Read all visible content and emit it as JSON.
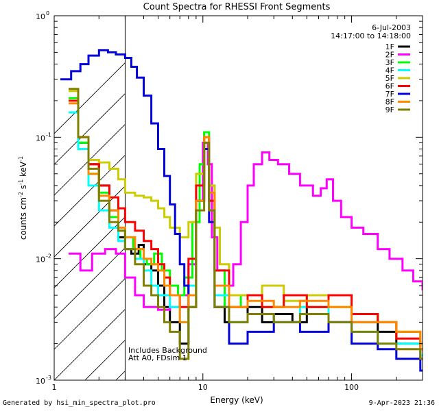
{
  "chart_data": {
    "type": "line",
    "title": "Count Spectra for RHESSI Front Segments",
    "xlabel": "Energy (keV)",
    "ylabel_parts": [
      "counts cm",
      "-2",
      " s",
      "-1",
      " keV",
      "-1"
    ],
    "xscale": "log",
    "yscale": "log",
    "xlim": [
      1,
      300
    ],
    "ylim": [
      0.001,
      1
    ],
    "x_ticks": [
      {
        "value": 1,
        "label": "1"
      },
      {
        "value": 10,
        "label": "10"
      },
      {
        "value": 100,
        "label": "100"
      }
    ],
    "y_ticks": [
      {
        "value": 0.001,
        "base": "10",
        "exp": "-3"
      },
      {
        "value": 0.01,
        "base": "10",
        "exp": "-2"
      },
      {
        "value": 0.1,
        "base": "10",
        "exp": "-1"
      },
      {
        "value": 1,
        "base": "10",
        "exp": "0"
      }
    ],
    "date": "6-Jul-2003",
    "time_range": "14:17:00 to 14:18:00",
    "annotation_lines": [
      "Includes Background",
      "Att A0, FDsim 1"
    ],
    "hatched_region_xmax": 3,
    "legend_position": "top-right",
    "series": [
      {
        "name": "1F",
        "color": "#000000",
        "points": [
          [
            1.25,
            0.2
          ],
          [
            1.45,
            0.09
          ],
          [
            1.7,
            0.06
          ],
          [
            2.0,
            0.04
          ],
          [
            2.35,
            0.025
          ],
          [
            2.7,
            0.015
          ],
          [
            3.0,
            0.012
          ],
          [
            3.3,
            0.011
          ],
          [
            3.7,
            0.013
          ],
          [
            4.0,
            0.009
          ],
          [
            4.5,
            0.008
          ],
          [
            5.0,
            0.006
          ],
          [
            5.5,
            0.004
          ],
          [
            6.0,
            0.003
          ],
          [
            7.0,
            0.002
          ],
          [
            8.0,
            0.004
          ],
          [
            9.0,
            0.03
          ],
          [
            10.2,
            0.1
          ],
          [
            11.0,
            0.03
          ],
          [
            12.0,
            0.004
          ],
          [
            14.0,
            0.003
          ],
          [
            17,
            0.003
          ],
          [
            20,
            0.004
          ],
          [
            25,
            0.003
          ],
          [
            30,
            0.0035
          ],
          [
            40,
            0.003
          ],
          [
            50,
            0.004
          ],
          [
            70,
            0.003
          ],
          [
            100,
            0.003
          ],
          [
            150,
            0.0025
          ],
          [
            200,
            0.002
          ],
          [
            290,
            0.0015
          ]
        ]
      },
      {
        "name": "2F",
        "color": "#ff00ff",
        "points": [
          [
            1.25,
            0.011
          ],
          [
            1.5,
            0.008
          ],
          [
            1.8,
            0.011
          ],
          [
            2.2,
            0.012
          ],
          [
            2.6,
            0.011
          ],
          [
            3.0,
            0.007
          ],
          [
            3.5,
            0.005
          ],
          [
            4.0,
            0.004
          ],
          [
            5.0,
            0.0038
          ],
          [
            6.0,
            0.004
          ],
          [
            7.0,
            0.005
          ],
          [
            8.0,
            0.009
          ],
          [
            9.0,
            0.03
          ],
          [
            10.0,
            0.09
          ],
          [
            10.8,
            0.06
          ],
          [
            11.5,
            0.015
          ],
          [
            12.5,
            0.008
          ],
          [
            14.0,
            0.006
          ],
          [
            16.0,
            0.009
          ],
          [
            18.0,
            0.02
          ],
          [
            20.0,
            0.04
          ],
          [
            22.0,
            0.06
          ],
          [
            25.0,
            0.075
          ],
          [
            28.0,
            0.065
          ],
          [
            32.0,
            0.06
          ],
          [
            38.0,
            0.05
          ],
          [
            45.0,
            0.04
          ],
          [
            55.0,
            0.033
          ],
          [
            62.0,
            0.038
          ],
          [
            68.0,
            0.045
          ],
          [
            75.0,
            0.03
          ],
          [
            85.0,
            0.022
          ],
          [
            100.0,
            0.018
          ],
          [
            120.0,
            0.016
          ],
          [
            150.0,
            0.012
          ],
          [
            180.0,
            0.01
          ],
          [
            220.0,
            0.008
          ],
          [
            260.0,
            0.0065
          ],
          [
            300.0,
            0.0055
          ]
        ]
      },
      {
        "name": "3F",
        "color": "#00ff00",
        "points": [
          [
            1.25,
            0.21
          ],
          [
            1.45,
            0.09
          ],
          [
            1.7,
            0.05
          ],
          [
            2.0,
            0.035
          ],
          [
            2.35,
            0.022
          ],
          [
            2.7,
            0.017
          ],
          [
            3.0,
            0.015
          ],
          [
            3.4,
            0.012
          ],
          [
            3.8,
            0.01
          ],
          [
            4.2,
            0.009
          ],
          [
            4.7,
            0.011
          ],
          [
            5.3,
            0.008
          ],
          [
            6.0,
            0.006
          ],
          [
            6.8,
            0.005
          ],
          [
            7.5,
            0.007
          ],
          [
            8.5,
            0.02
          ],
          [
            9.5,
            0.06
          ],
          [
            10.2,
            0.11
          ],
          [
            11.0,
            0.04
          ],
          [
            12.0,
            0.008
          ],
          [
            14,
            0.004
          ],
          [
            18,
            0.005
          ],
          [
            25,
            0.004
          ],
          [
            35,
            0.005
          ],
          [
            50,
            0.004
          ],
          [
            70,
            0.005
          ],
          [
            100,
            0.0035
          ],
          [
            150,
            0.003
          ],
          [
            200,
            0.0025
          ],
          [
            290,
            0.002
          ]
        ]
      },
      {
        "name": "4F",
        "color": "#00ffff",
        "points": [
          [
            1.25,
            0.16
          ],
          [
            1.45,
            0.08
          ],
          [
            1.7,
            0.04
          ],
          [
            2.0,
            0.025
          ],
          [
            2.35,
            0.018
          ],
          [
            2.7,
            0.014
          ],
          [
            3.0,
            0.012
          ],
          [
            3.5,
            0.01
          ],
          [
            4.0,
            0.008
          ],
          [
            4.5,
            0.006
          ],
          [
            5.0,
            0.005
          ],
          [
            6.0,
            0.004
          ],
          [
            7.0,
            0.003
          ],
          [
            8.0,
            0.006
          ],
          [
            9.0,
            0.03
          ],
          [
            10.2,
            0.1
          ],
          [
            11.0,
            0.03
          ],
          [
            12.0,
            0.005
          ],
          [
            15,
            0.003
          ],
          [
            20,
            0.0035
          ],
          [
            30,
            0.003
          ],
          [
            45,
            0.004
          ],
          [
            70,
            0.003
          ],
          [
            100,
            0.0025
          ],
          [
            150,
            0.002
          ],
          [
            200,
            0.002
          ],
          [
            290,
            0.0016
          ]
        ]
      },
      {
        "name": "5F",
        "color": "#cccc00",
        "points": [
          [
            1.25,
            0.24
          ],
          [
            1.45,
            0.1
          ],
          [
            1.7,
            0.065
          ],
          [
            2.0,
            0.062
          ],
          [
            2.35,
            0.055
          ],
          [
            2.7,
            0.045
          ],
          [
            3.0,
            0.035
          ],
          [
            3.5,
            0.033
          ],
          [
            4.0,
            0.032
          ],
          [
            4.5,
            0.03
          ],
          [
            5.0,
            0.026
          ],
          [
            5.5,
            0.022
          ],
          [
            6.0,
            0.018
          ],
          [
            7.0,
            0.015
          ],
          [
            8.0,
            0.02
          ],
          [
            9.0,
            0.05
          ],
          [
            10.2,
            0.1
          ],
          [
            11.0,
            0.04
          ],
          [
            12.0,
            0.018
          ],
          [
            13.0,
            0.009
          ],
          [
            15,
            0.005
          ],
          [
            20,
            0.005
          ],
          [
            25,
            0.006
          ],
          [
            35,
            0.0045
          ],
          [
            50,
            0.005
          ],
          [
            70,
            0.004
          ],
          [
            100,
            0.0035
          ],
          [
            150,
            0.003
          ],
          [
            200,
            0.0025
          ],
          [
            290,
            0.002
          ]
        ]
      },
      {
        "name": "6F",
        "color": "#ff0000",
        "points": [
          [
            1.25,
            0.2
          ],
          [
            1.45,
            0.1
          ],
          [
            1.7,
            0.06
          ],
          [
            2.0,
            0.04
          ],
          [
            2.35,
            0.032
          ],
          [
            2.7,
            0.026
          ],
          [
            3.0,
            0.02
          ],
          [
            3.5,
            0.017
          ],
          [
            4.0,
            0.014
          ],
          [
            4.5,
            0.012
          ],
          [
            5.0,
            0.009
          ],
          [
            5.5,
            0.007
          ],
          [
            6.0,
            0.005
          ],
          [
            7.0,
            0.004
          ],
          [
            8.0,
            0.01
          ],
          [
            9.0,
            0.04
          ],
          [
            10.2,
            0.1
          ],
          [
            11.0,
            0.03
          ],
          [
            12.0,
            0.008
          ],
          [
            15,
            0.004
          ],
          [
            20,
            0.005
          ],
          [
            25,
            0.004
          ],
          [
            35,
            0.005
          ],
          [
            50,
            0.004
          ],
          [
            70,
            0.005
          ],
          [
            100,
            0.0035
          ],
          [
            150,
            0.003
          ],
          [
            200,
            0.0022
          ],
          [
            290,
            0.0018
          ]
        ]
      },
      {
        "name": "7F",
        "color": "#0000dd",
        "points": [
          [
            1.1,
            0.3
          ],
          [
            1.3,
            0.35
          ],
          [
            1.5,
            0.4
          ],
          [
            1.7,
            0.47
          ],
          [
            2.0,
            0.52
          ],
          [
            2.3,
            0.5
          ],
          [
            2.6,
            0.48
          ],
          [
            3.0,
            0.45
          ],
          [
            3.3,
            0.38
          ],
          [
            3.6,
            0.31
          ],
          [
            4.0,
            0.22
          ],
          [
            4.5,
            0.13
          ],
          [
            5.0,
            0.08
          ],
          [
            5.5,
            0.048
          ],
          [
            6.0,
            0.028
          ],
          [
            6.5,
            0.016
          ],
          [
            7.0,
            0.009
          ],
          [
            7.5,
            0.006
          ],
          [
            8.0,
            0.005
          ],
          [
            9.0,
            0.03
          ],
          [
            10.2,
            0.08
          ],
          [
            11.0,
            0.02
          ],
          [
            12.0,
            0.004
          ],
          [
            15,
            0.002
          ],
          [
            20,
            0.0025
          ],
          [
            30,
            0.003
          ],
          [
            45,
            0.0025
          ],
          [
            70,
            0.003
          ],
          [
            100,
            0.002
          ],
          [
            150,
            0.0018
          ],
          [
            200,
            0.0015
          ],
          [
            290,
            0.0012
          ]
        ]
      },
      {
        "name": "8F",
        "color": "#ff8800",
        "points": [
          [
            1.25,
            0.19
          ],
          [
            1.45,
            0.1
          ],
          [
            1.7,
            0.05
          ],
          [
            2.0,
            0.033
          ],
          [
            2.35,
            0.025
          ],
          [
            2.7,
            0.018
          ],
          [
            3.0,
            0.015
          ],
          [
            3.5,
            0.012
          ],
          [
            4.0,
            0.01
          ],
          [
            4.5,
            0.009
          ],
          [
            5.0,
            0.008
          ],
          [
            5.5,
            0.006
          ],
          [
            6.0,
            0.005
          ],
          [
            7.0,
            0.003
          ],
          [
            8.0,
            0.005
          ],
          [
            9.0,
            0.03
          ],
          [
            10.2,
            0.1
          ],
          [
            11.0,
            0.035
          ],
          [
            12.0,
            0.006
          ],
          [
            15,
            0.004
          ],
          [
            20,
            0.0045
          ],
          [
            30,
            0.004
          ],
          [
            45,
            0.0045
          ],
          [
            70,
            0.004
          ],
          [
            100,
            0.003
          ],
          [
            150,
            0.003
          ],
          [
            200,
            0.0025
          ],
          [
            290,
            0.0018
          ]
        ]
      },
      {
        "name": "9F",
        "color": "#808000",
        "points": [
          [
            1.25,
            0.25
          ],
          [
            1.45,
            0.1
          ],
          [
            1.7,
            0.055
          ],
          [
            2.0,
            0.03
          ],
          [
            2.35,
            0.02
          ],
          [
            2.7,
            0.017
          ],
          [
            3.0,
            0.012
          ],
          [
            3.5,
            0.009
          ],
          [
            4.0,
            0.006
          ],
          [
            4.5,
            0.005
          ],
          [
            5.0,
            0.004
          ],
          [
            5.5,
            0.003
          ],
          [
            6.0,
            0.0025
          ],
          [
            7.0,
            0.0015
          ],
          [
            8.0,
            0.004
          ],
          [
            9.0,
            0.025
          ],
          [
            10.2,
            0.09
          ],
          [
            11.0,
            0.025
          ],
          [
            12.0,
            0.004
          ],
          [
            15,
            0.003
          ],
          [
            20,
            0.0035
          ],
          [
            30,
            0.003
          ],
          [
            45,
            0.0035
          ],
          [
            70,
            0.003
          ],
          [
            100,
            0.0025
          ],
          [
            150,
            0.002
          ],
          [
            200,
            0.0018
          ],
          [
            290,
            0.0015
          ]
        ]
      }
    ]
  },
  "footer": {
    "left": "Generated by hsi_min_spectra_plot.pro",
    "right": "9-Apr-2023 21:36"
  }
}
